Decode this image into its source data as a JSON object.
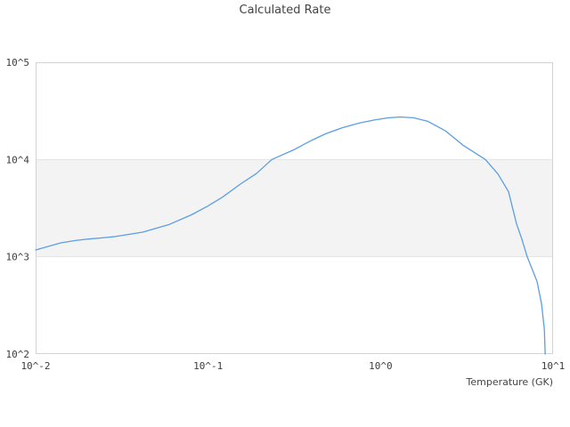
{
  "chart_data": {
    "type": "line",
    "title": "Calculated Rate",
    "xlabel": "Temperature (GK)",
    "ylabel": "",
    "x_scale": "log",
    "y_scale": "log",
    "xlim": [
      0.01,
      10
    ],
    "ylim": [
      100,
      100000
    ],
    "grid": false,
    "legend": "none",
    "x_ticks": {
      "values": [
        0.01,
        0.1,
        1,
        10
      ],
      "labels": [
        "10^-2",
        "10^-1",
        "10^0",
        "10^1"
      ]
    },
    "y_ticks": {
      "values": [
        100,
        1000,
        10000,
        100000
      ],
      "labels": [
        "10^2",
        "10^3",
        "10^4",
        "10^5"
      ]
    },
    "highlight_band": {
      "y_from": 1000,
      "y_to": 10000,
      "fill": "#f3f3f3",
      "edge": "#e4e4e4"
    },
    "line_color": "#5b9ee3",
    "border_color": "#d3d3d3",
    "series": [
      {
        "name": "calculated-rate",
        "points": [
          [
            0.01,
            1175
          ],
          [
            0.014,
            1390
          ],
          [
            0.017,
            1470
          ],
          [
            0.02,
            1520
          ],
          [
            0.0243,
            1565
          ],
          [
            0.029,
            1615
          ],
          [
            0.0417,
            1790
          ],
          [
            0.0595,
            2150
          ],
          [
            0.08,
            2700
          ],
          [
            0.099,
            3300
          ],
          [
            0.121,
            4100
          ],
          [
            0.154,
            5600
          ],
          [
            0.191,
            7200
          ],
          [
            0.234,
            10000
          ],
          [
            0.314,
            12600
          ],
          [
            0.4,
            15800
          ],
          [
            0.48,
            18400
          ],
          [
            0.6,
            21200
          ],
          [
            0.75,
            23700
          ],
          [
            0.92,
            25500
          ],
          [
            1.1,
            26800
          ],
          [
            1.3,
            27400
          ],
          [
            1.55,
            26900
          ],
          [
            1.87,
            24800
          ],
          [
            2.37,
            19800
          ],
          [
            3.01,
            14000
          ],
          [
            4.05,
            10000
          ],
          [
            4.79,
            7100
          ],
          [
            5.52,
            4660
          ],
          [
            6.14,
            2180
          ],
          [
            6.59,
            1520
          ],
          [
            7.08,
            1000
          ],
          [
            8.07,
            560
          ],
          [
            8.57,
            330
          ],
          [
            8.9,
            180
          ],
          [
            9.0,
            100
          ]
        ]
      }
    ]
  }
}
